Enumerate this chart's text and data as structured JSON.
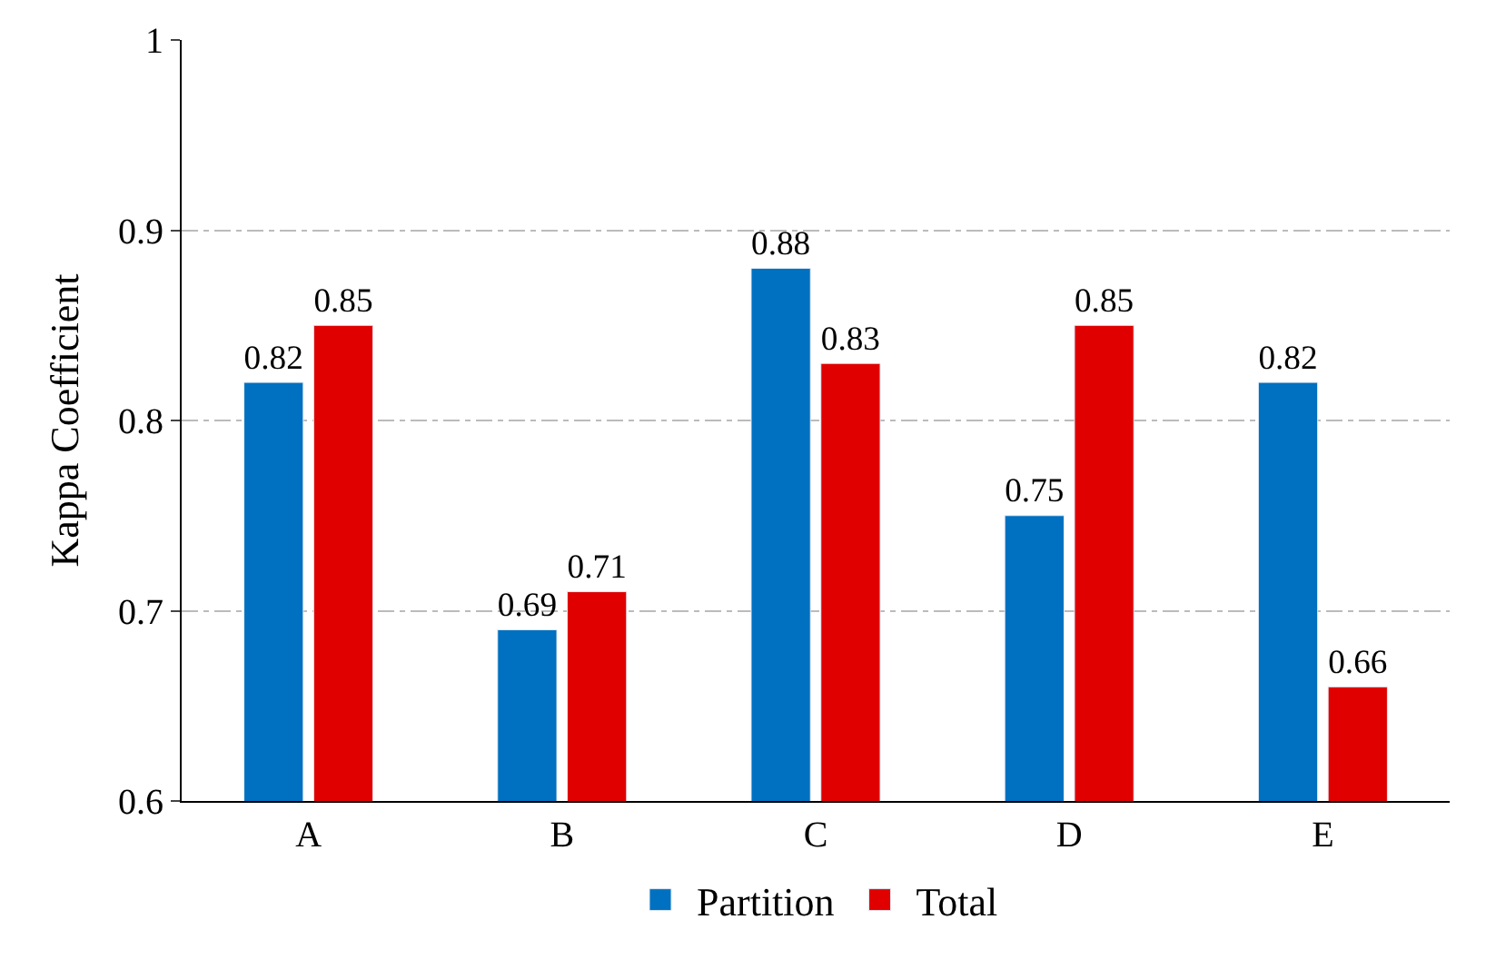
{
  "chart_data": {
    "type": "bar",
    "ylabel": "Kappa Coefficient",
    "categories": [
      "A",
      "B",
      "C",
      "D",
      "E"
    ],
    "series": [
      {
        "name": "Partition",
        "color": "#0070c0",
        "values": [
          0.82,
          0.69,
          0.88,
          0.75,
          0.82
        ]
      },
      {
        "name": "Total",
        "color": "#e00000",
        "values": [
          0.85,
          0.71,
          0.83,
          0.85,
          0.66
        ]
      }
    ],
    "ylim": [
      0.6,
      1
    ],
    "yticks": [
      0.6,
      0.7,
      0.8,
      0.9,
      1
    ],
    "grid": "y",
    "legend": "bottom",
    "data_labels": true
  }
}
